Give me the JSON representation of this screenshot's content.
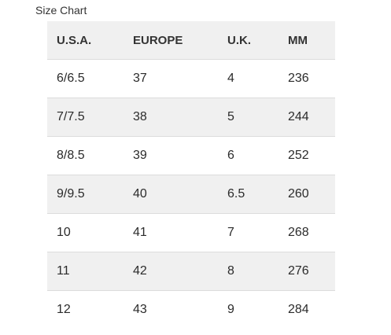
{
  "title": "Size Chart",
  "table": {
    "headers": [
      "U.S.A.",
      "EUROPE",
      "U.K.",
      "MM"
    ],
    "rows": [
      [
        "6/6.5",
        "37",
        "4",
        "236"
      ],
      [
        "7/7.5",
        "38",
        "5",
        "244"
      ],
      [
        "8/8.5",
        "39",
        "6",
        "252"
      ],
      [
        "9/9.5",
        "40",
        "6.5",
        "260"
      ],
      [
        "10",
        "41",
        "7",
        "268"
      ],
      [
        "11",
        "42",
        "8",
        "276"
      ],
      [
        "12",
        "43",
        "9",
        "284"
      ]
    ]
  },
  "colors": {
    "stripe": "#f0f0f0",
    "border": "#dcdcdc",
    "text": "#2b2b2b"
  }
}
